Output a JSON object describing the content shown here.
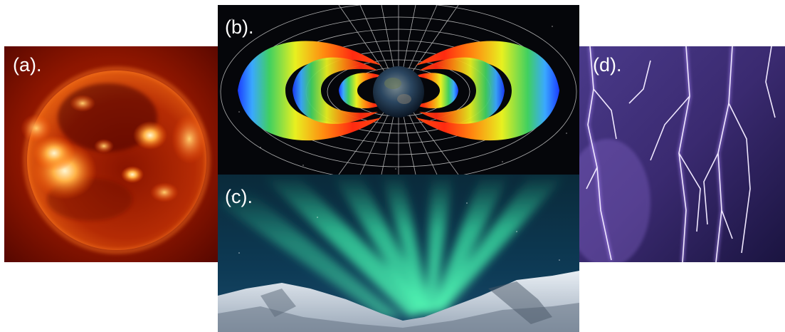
{
  "panels": {
    "a": {
      "label": "(a)."
    },
    "b": {
      "label": "(b)."
    },
    "c": {
      "label": "(c)."
    },
    "d": {
      "label": "(d)."
    }
  }
}
